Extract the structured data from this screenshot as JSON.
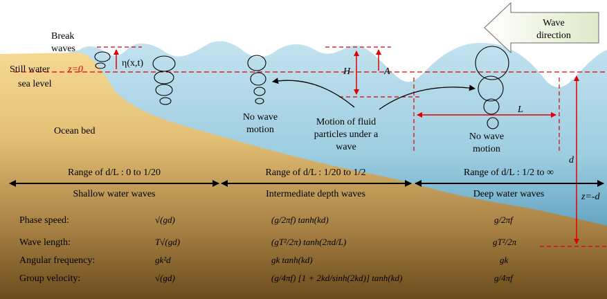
{
  "labels": {
    "break_waves_1": "Break",
    "break_waves_2": "waves",
    "still_water_1": "Still water",
    "still_water_2": "sea level",
    "z0": "z=0",
    "eta": "η(x,t)",
    "H": "H",
    "A": "A",
    "L": "L",
    "d": "d",
    "z_minus_d": "z=-d",
    "no_wave_1a": "No wave",
    "no_wave_1b": "motion",
    "no_wave_2a": "No wave",
    "no_wave_2b": "motion",
    "motion_1": "Motion of fluid",
    "motion_2": "particles under a",
    "motion_3": "wave",
    "ocean_bed": "Ocean bed",
    "wave_dir_1": "Wave",
    "wave_dir_2": "direction"
  },
  "ranges": {
    "shallow_range": "Range of d/L : 0 to 1/20",
    "inter_range": "Range of d/L : 1/20 to 1/2",
    "deep_range": "Range of d/L : 1/2 to ∞",
    "shallow_name": "Shallow water waves",
    "inter_name": "Intermediate depth waves",
    "deep_name": "Deep water waves"
  },
  "table": {
    "rows": [
      {
        "label": "Phase speed:",
        "shallow": "√(gd)",
        "inter": "(g/2πf) tanh(kd)",
        "deep": "g/2πf"
      },
      {
        "label": "Wave length:",
        "shallow": "T√(gd)",
        "inter": "(gT²/2π) tanh(2πd/L)",
        "deep": "gT²/2π"
      },
      {
        "label": "Angular frequency:",
        "shallow": "gk²d",
        "inter": "gk tanh(kd)",
        "deep": "gk"
      },
      {
        "label": "Group velocity:",
        "shallow": "√(gd)",
        "inter": "(g/4πf) [1 + 2kd/sinh(2kd)] tanh(kd)",
        "deep": "g/4πf"
      }
    ]
  },
  "colors": {
    "water_top": "#b9dcec",
    "water_bottom": "#2f7fa6",
    "sand_light": "#f4d48e",
    "sand_dark": "#7a5a25",
    "arrow_red": "#e00000",
    "arrow_box": "#e6f0d2"
  }
}
